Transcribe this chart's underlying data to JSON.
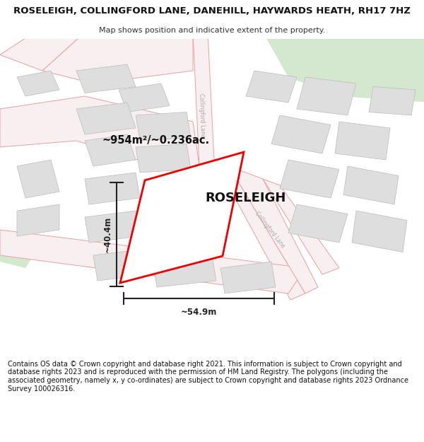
{
  "title": "ROSELEIGH, COLLINGFORD LANE, DANEHILL, HAYWARDS HEATH, RH17 7HZ",
  "subtitle": "Map shows position and indicative extent of the property.",
  "footer": "Contains OS data © Crown copyright and database right 2021. This information is subject to Crown copyright and database rights 2023 and is reproduced with the permission of HM Land Registry. The polygons (including the associated geometry, namely x, y co-ordinates) are subject to Crown copyright and database rights 2023 Ordnance Survey 100026316.",
  "map_bg": "#ffffff",
  "road_line_color": "#e8a0a0",
  "road_fill_color": "#f5e8e8",
  "building_fill": "#dedede",
  "building_edge": "#bbbbbb",
  "green_fill": "#d4e8d0",
  "highlight_fill": "#ffffff",
  "highlight_edge": "#ee0000",
  "highlight_lw": 2.0,
  "dim_color": "#222222",
  "label_color": "#111111",
  "street_label_color": "#aaaaaa",
  "area_text": "~954m²/~0.236ac.",
  "property_name": "ROSELEIGH",
  "dim_width": "~54.9m",
  "dim_height": "~40.4m",
  "street_name_top": "Collingford Lane",
  "street_name_right": "Collingford Lane",
  "figsize": [
    6.0,
    6.25
  ],
  "dpi": 100
}
